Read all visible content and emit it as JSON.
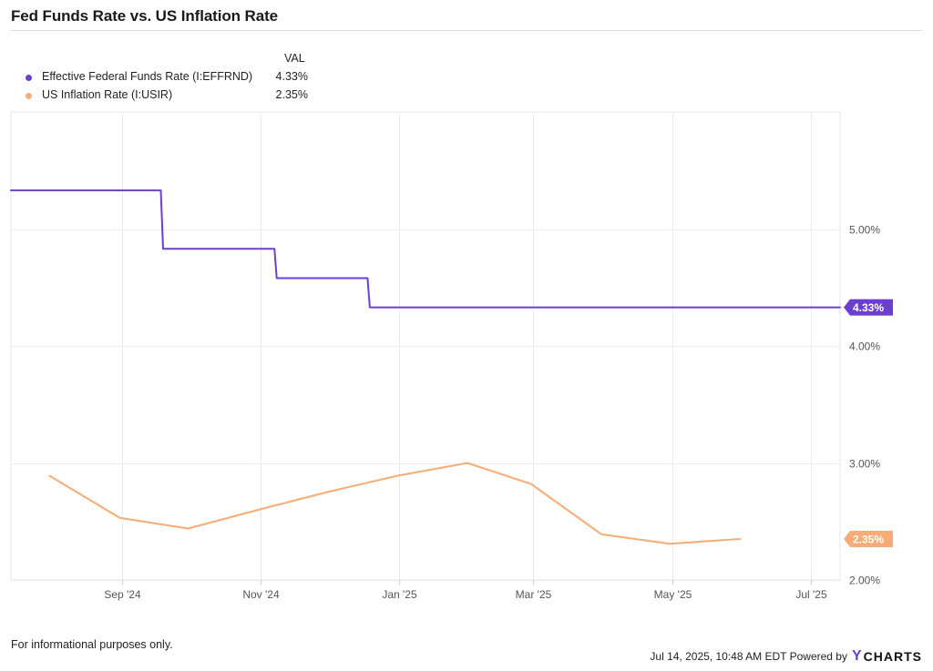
{
  "title": "Fed Funds Rate vs. US Inflation Rate",
  "legend": {
    "header": "VAL",
    "items": [
      {
        "name": "Effective Federal Funds Rate (I:EFFRND)",
        "value": "4.33%",
        "color": "#6b3fd0"
      },
      {
        "name": "US Inflation Rate (I:USIR)",
        "value": "2.35%",
        "color": "#f7ab75"
      }
    ]
  },
  "footer": {
    "note": "For informational purposes only.",
    "timestamp": "Jul 14, 2025, 10:48 AM EDT Powered by",
    "brand": "CHARTS",
    "brand_mark": "Y"
  },
  "chart_data": {
    "type": "line",
    "title": "Fed Funds Rate vs. US Inflation Rate",
    "xlabel": "",
    "ylabel": "",
    "x_range": [
      "2024-07-14",
      "2025-07-14"
    ],
    "ylim": [
      2.0,
      6.0
    ],
    "y_ticks": [
      2.0,
      3.0,
      4.0,
      5.0
    ],
    "y_tick_labels": [
      "2.00%",
      "3.00%",
      "4.00%",
      "5.00%"
    ],
    "x_ticks": [
      "2024-09-01",
      "2024-11-01",
      "2025-01-01",
      "2025-03-01",
      "2025-05-01",
      "2025-07-01"
    ],
    "x_tick_labels": [
      "Sep '24",
      "Nov '24",
      "Jan '25",
      "Mar '25",
      "May '25",
      "Jul '25"
    ],
    "grid": true,
    "legend_position": "top-left",
    "series": [
      {
        "name": "Effective Federal Funds Rate (I:EFFRND)",
        "color": "#6b3fd0",
        "step": true,
        "end_label": "4.33%",
        "points": [
          [
            "2024-07-14",
            5.33
          ],
          [
            "2024-09-18",
            5.33
          ],
          [
            "2024-09-19",
            4.83
          ],
          [
            "2024-11-07",
            4.83
          ],
          [
            "2024-11-08",
            4.58
          ],
          [
            "2024-12-18",
            4.58
          ],
          [
            "2024-12-19",
            4.33
          ],
          [
            "2025-07-14",
            4.33
          ]
        ]
      },
      {
        "name": "US Inflation Rate (I:USIR)",
        "color": "#f7ab75",
        "step": false,
        "end_label": "2.35%",
        "points": [
          [
            "2024-07-31",
            2.89
          ],
          [
            "2024-08-31",
            2.53
          ],
          [
            "2024-09-30",
            2.44
          ],
          [
            "2024-10-31",
            2.6
          ],
          [
            "2024-11-30",
            2.75
          ],
          [
            "2024-12-31",
            2.89
          ],
          [
            "2025-01-31",
            3.0
          ],
          [
            "2025-02-28",
            2.82
          ],
          [
            "2025-03-31",
            2.39
          ],
          [
            "2025-04-30",
            2.31
          ],
          [
            "2025-05-31",
            2.35
          ]
        ]
      }
    ]
  }
}
